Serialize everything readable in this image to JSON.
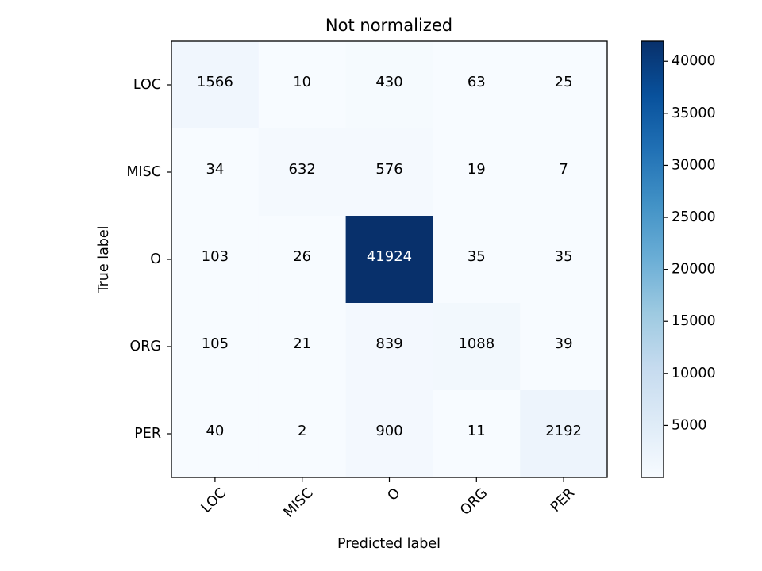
{
  "chart_data": {
    "type": "heatmap",
    "title": "Not normalized",
    "xlabel": "Predicted label",
    "ylabel": "True label",
    "x_categories": [
      "LOC",
      "MISC",
      "O",
      "ORG",
      "PER"
    ],
    "y_categories": [
      "LOC",
      "MISC",
      "O",
      "ORG",
      "PER"
    ],
    "matrix": [
      [
        1566,
        10,
        430,
        63,
        25
      ],
      [
        34,
        632,
        576,
        19,
        7
      ],
      [
        103,
        26,
        41924,
        35,
        35
      ],
      [
        105,
        21,
        839,
        1088,
        39
      ],
      [
        40,
        2,
        900,
        11,
        2192
      ]
    ],
    "colormap": "Blues",
    "colors": {
      "low": "#f7fbff",
      "high": "#08306b"
    },
    "value_range": [
      2,
      41924
    ],
    "colorbar": {
      "ticks": [
        5000,
        10000,
        15000,
        20000,
        25000,
        30000,
        35000,
        40000
      ],
      "tick_labels": [
        "5000",
        "10000",
        "15000",
        "20000",
        "25000",
        "30000",
        "35000",
        "40000"
      ]
    },
    "grid": false,
    "x_tick_rotation_deg": 45
  }
}
